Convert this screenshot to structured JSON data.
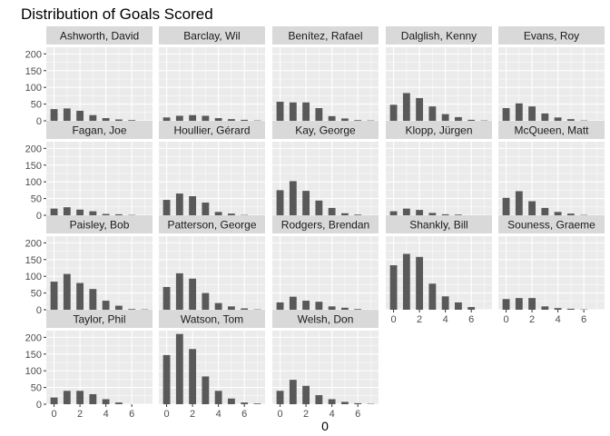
{
  "chart_data": {
    "type": "bar",
    "title": "Distribution of Goals Scored",
    "xlabel": "0",
    "ylabel": "",
    "x_ticks": [
      0,
      2,
      4,
      6
    ],
    "y_ticks": [
      0,
      50,
      100,
      150,
      200
    ],
    "xlim": [
      -0.6,
      7.6
    ],
    "ylim": [
      0,
      220
    ],
    "grid": true,
    "bar_color": "#595959",
    "panel_color": "#ebebeb",
    "strip_color": "#d9d9d9",
    "x": [
      0,
      1,
      2,
      3,
      4,
      5,
      6,
      7
    ],
    "series": [
      {
        "name": "Ashworth, David",
        "values": [
          35,
          37,
          30,
          17,
          8,
          4,
          2,
          0
        ]
      },
      {
        "name": "Barclay, Wil",
        "values": [
          10,
          15,
          17,
          15,
          8,
          5,
          3,
          1
        ]
      },
      {
        "name": "Benítez, Rafael",
        "values": [
          57,
          55,
          55,
          38,
          14,
          7,
          2,
          1
        ]
      },
      {
        "name": "Dalglish, Kenny",
        "values": [
          48,
          83,
          68,
          43,
          20,
          11,
          3,
          1
        ]
      },
      {
        "name": "Evans, Roy",
        "values": [
          38,
          52,
          43,
          22,
          10,
          5,
          1,
          0
        ]
      },
      {
        "name": "Fagan, Joe",
        "values": [
          20,
          24,
          17,
          12,
          4,
          3,
          1,
          0
        ]
      },
      {
        "name": "Houllier, Gérard",
        "values": [
          46,
          65,
          57,
          38,
          10,
          5,
          1,
          0
        ]
      },
      {
        "name": "Kay, George",
        "values": [
          75,
          102,
          73,
          44,
          22,
          6,
          2,
          0
        ]
      },
      {
        "name": "Klopp, Jürgen",
        "values": [
          12,
          20,
          16,
          7,
          3,
          2,
          0,
          0
        ]
      },
      {
        "name": "McQueen, Matt",
        "values": [
          52,
          72,
          42,
          22,
          10,
          5,
          1,
          0
        ]
      },
      {
        "name": "Paisley, Bob",
        "values": [
          84,
          107,
          80,
          62,
          27,
          12,
          2,
          1
        ]
      },
      {
        "name": "Patterson, George",
        "values": [
          68,
          109,
          93,
          50,
          20,
          10,
          4,
          1
        ]
      },
      {
        "name": "Rodgers, Brendan",
        "values": [
          22,
          39,
          27,
          24,
          10,
          6,
          2,
          0
        ]
      },
      {
        "name": "Shankly, Bill",
        "values": [
          133,
          167,
          158,
          78,
          40,
          22,
          8,
          0
        ]
      },
      {
        "name": "Souness, Graeme",
        "values": [
          32,
          35,
          35,
          10,
          5,
          3,
          1,
          0
        ]
      },
      {
        "name": "Taylor, Phil",
        "values": [
          20,
          40,
          40,
          30,
          15,
          5,
          0,
          0
        ]
      },
      {
        "name": "Watson, Tom",
        "values": [
          147,
          210,
          165,
          83,
          40,
          17,
          5,
          2
        ]
      },
      {
        "name": "Welsh, Don",
        "values": [
          40,
          73,
          55,
          27,
          15,
          7,
          3,
          1
        ]
      }
    ]
  }
}
